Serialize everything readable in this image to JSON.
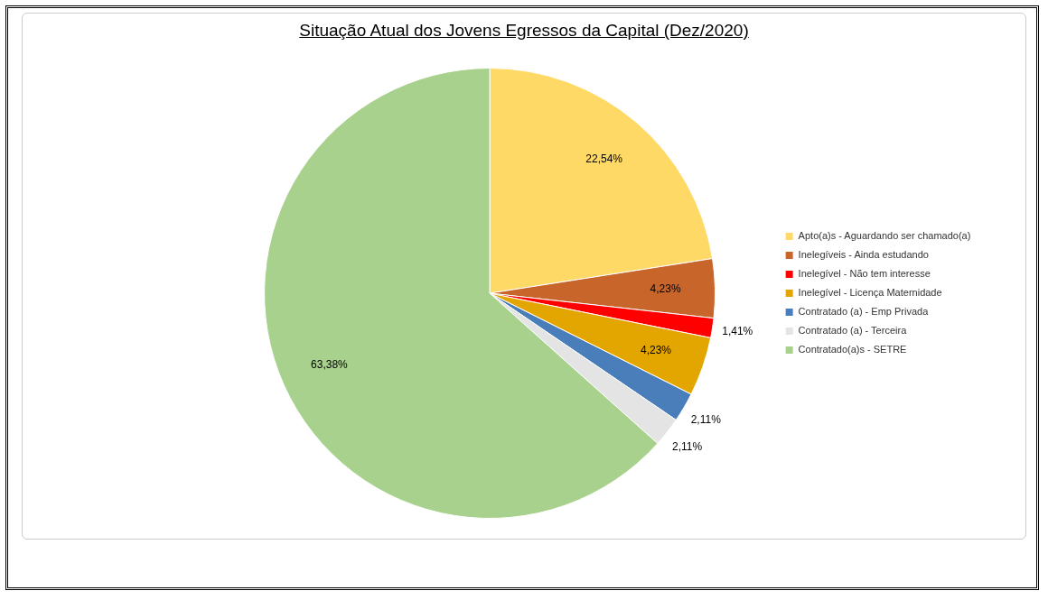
{
  "chart_data": {
    "type": "pie",
    "title": "Situação Atual dos Jovens Egressos da Capital (Dez/2020)",
    "categories": [
      "Apto(a)s - Aguardando ser chamado(a)",
      "Inelegíveis - Ainda estudando",
      "Inelegível - Não tem interesse",
      "Inelegível - Licença Maternidade",
      "Contratado (a) - Emp Privada",
      "Contratado (a) - Terceira",
      "Contratado(a)s - SETRE"
    ],
    "values": [
      22.54,
      4.23,
      1.41,
      4.23,
      2.11,
      2.11,
      63.38
    ],
    "colors": [
      "#ffd966",
      "#c8652b",
      "#ff0000",
      "#e3a600",
      "#4a7ebb",
      "#e4e4e4",
      "#a9d18e"
    ],
    "value_labels": [
      "22,54%",
      "4,23%",
      "1,41%",
      "4,23%",
      "2,11%",
      "2,11%",
      "63,38%"
    ],
    "legend": "right"
  }
}
